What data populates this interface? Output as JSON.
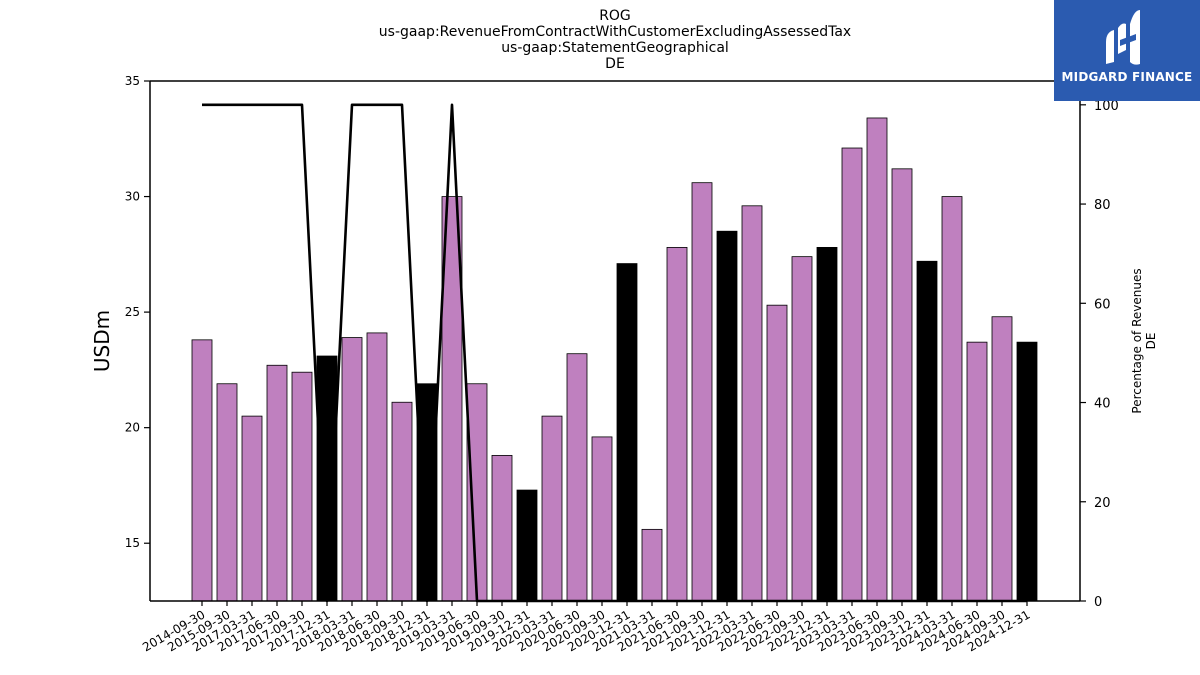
{
  "chart_data": {
    "type": "bar",
    "title_lines": [
      "ROG",
      "us-gaap:RevenueFromContractWithCustomerExcludingAssessedTax",
      "us-gaap:StatementGeographical",
      "DE"
    ],
    "ylabel": "USDm",
    "ylabel_right_lines": [
      "Percentage of Revenues",
      "DE"
    ],
    "ylim": [
      12.5,
      35
    ],
    "y_right_lim": [
      0,
      104.8
    ],
    "yticks": [
      15,
      20,
      25,
      30,
      35
    ],
    "y_right_ticks": [
      0,
      20,
      40,
      60,
      80,
      100
    ],
    "categories": [
      "2014-09-30",
      "2015-09-30",
      "2017-03-31",
      "2017-06-30",
      "2017-09-30",
      "2017-12-31",
      "2018-03-31",
      "2018-06-30",
      "2018-09-30",
      "2018-12-31",
      "2019-03-31",
      "2019-06-30",
      "2019-09-30",
      "2019-12-31",
      "2020-03-31",
      "2020-06-30",
      "2020-09-30",
      "2020-12-31",
      "2021-03-31",
      "2021-06-30",
      "2021-09-30",
      "2021-12-31",
      "2022-03-31",
      "2022-06-30",
      "2022-09-30",
      "2022-12-31",
      "2023-03-31",
      "2023-06-30",
      "2023-09-30",
      "2023-12-31",
      "2024-03-31",
      "2024-06-30",
      "2024-09-30",
      "2024-12-31"
    ],
    "series": [
      {
        "type": "bar",
        "values": [
          23.8,
          21.9,
          20.5,
          22.7,
          22.4,
          23.1,
          23.9,
          24.1,
          21.1,
          21.9,
          30.0,
          21.9,
          18.8,
          17.3,
          20.5,
          23.2,
          19.6,
          27.1,
          15.6,
          27.8,
          30.6,
          28.5,
          29.6,
          25.3,
          27.4,
          27.8,
          32.1,
          33.4,
          31.2,
          27.2,
          30.0,
          23.7,
          24.8,
          23.7
        ],
        "highlight": [
          false,
          false,
          false,
          false,
          false,
          true,
          false,
          false,
          false,
          true,
          false,
          false,
          false,
          true,
          false,
          false,
          false,
          true,
          false,
          false,
          false,
          true,
          false,
          false,
          false,
          true,
          false,
          false,
          false,
          true,
          false,
          false,
          false,
          true
        ]
      },
      {
        "type": "line",
        "axis": "right",
        "values": [
          100,
          100,
          100,
          100,
          100,
          0,
          100,
          100,
          100,
          0,
          100,
          0,
          0,
          0,
          0,
          0,
          0,
          0,
          0,
          0,
          0,
          0,
          0,
          0,
          0,
          0,
          0,
          0,
          0,
          0,
          0,
          0,
          0,
          0
        ]
      }
    ],
    "colors": {
      "bar": "#bf80bf",
      "bar_highlight": "#000000",
      "line": "#000000"
    },
    "grid": false
  },
  "logo": {
    "text": "MIDGARD FINANCE",
    "background": "#2b5bb0"
  }
}
